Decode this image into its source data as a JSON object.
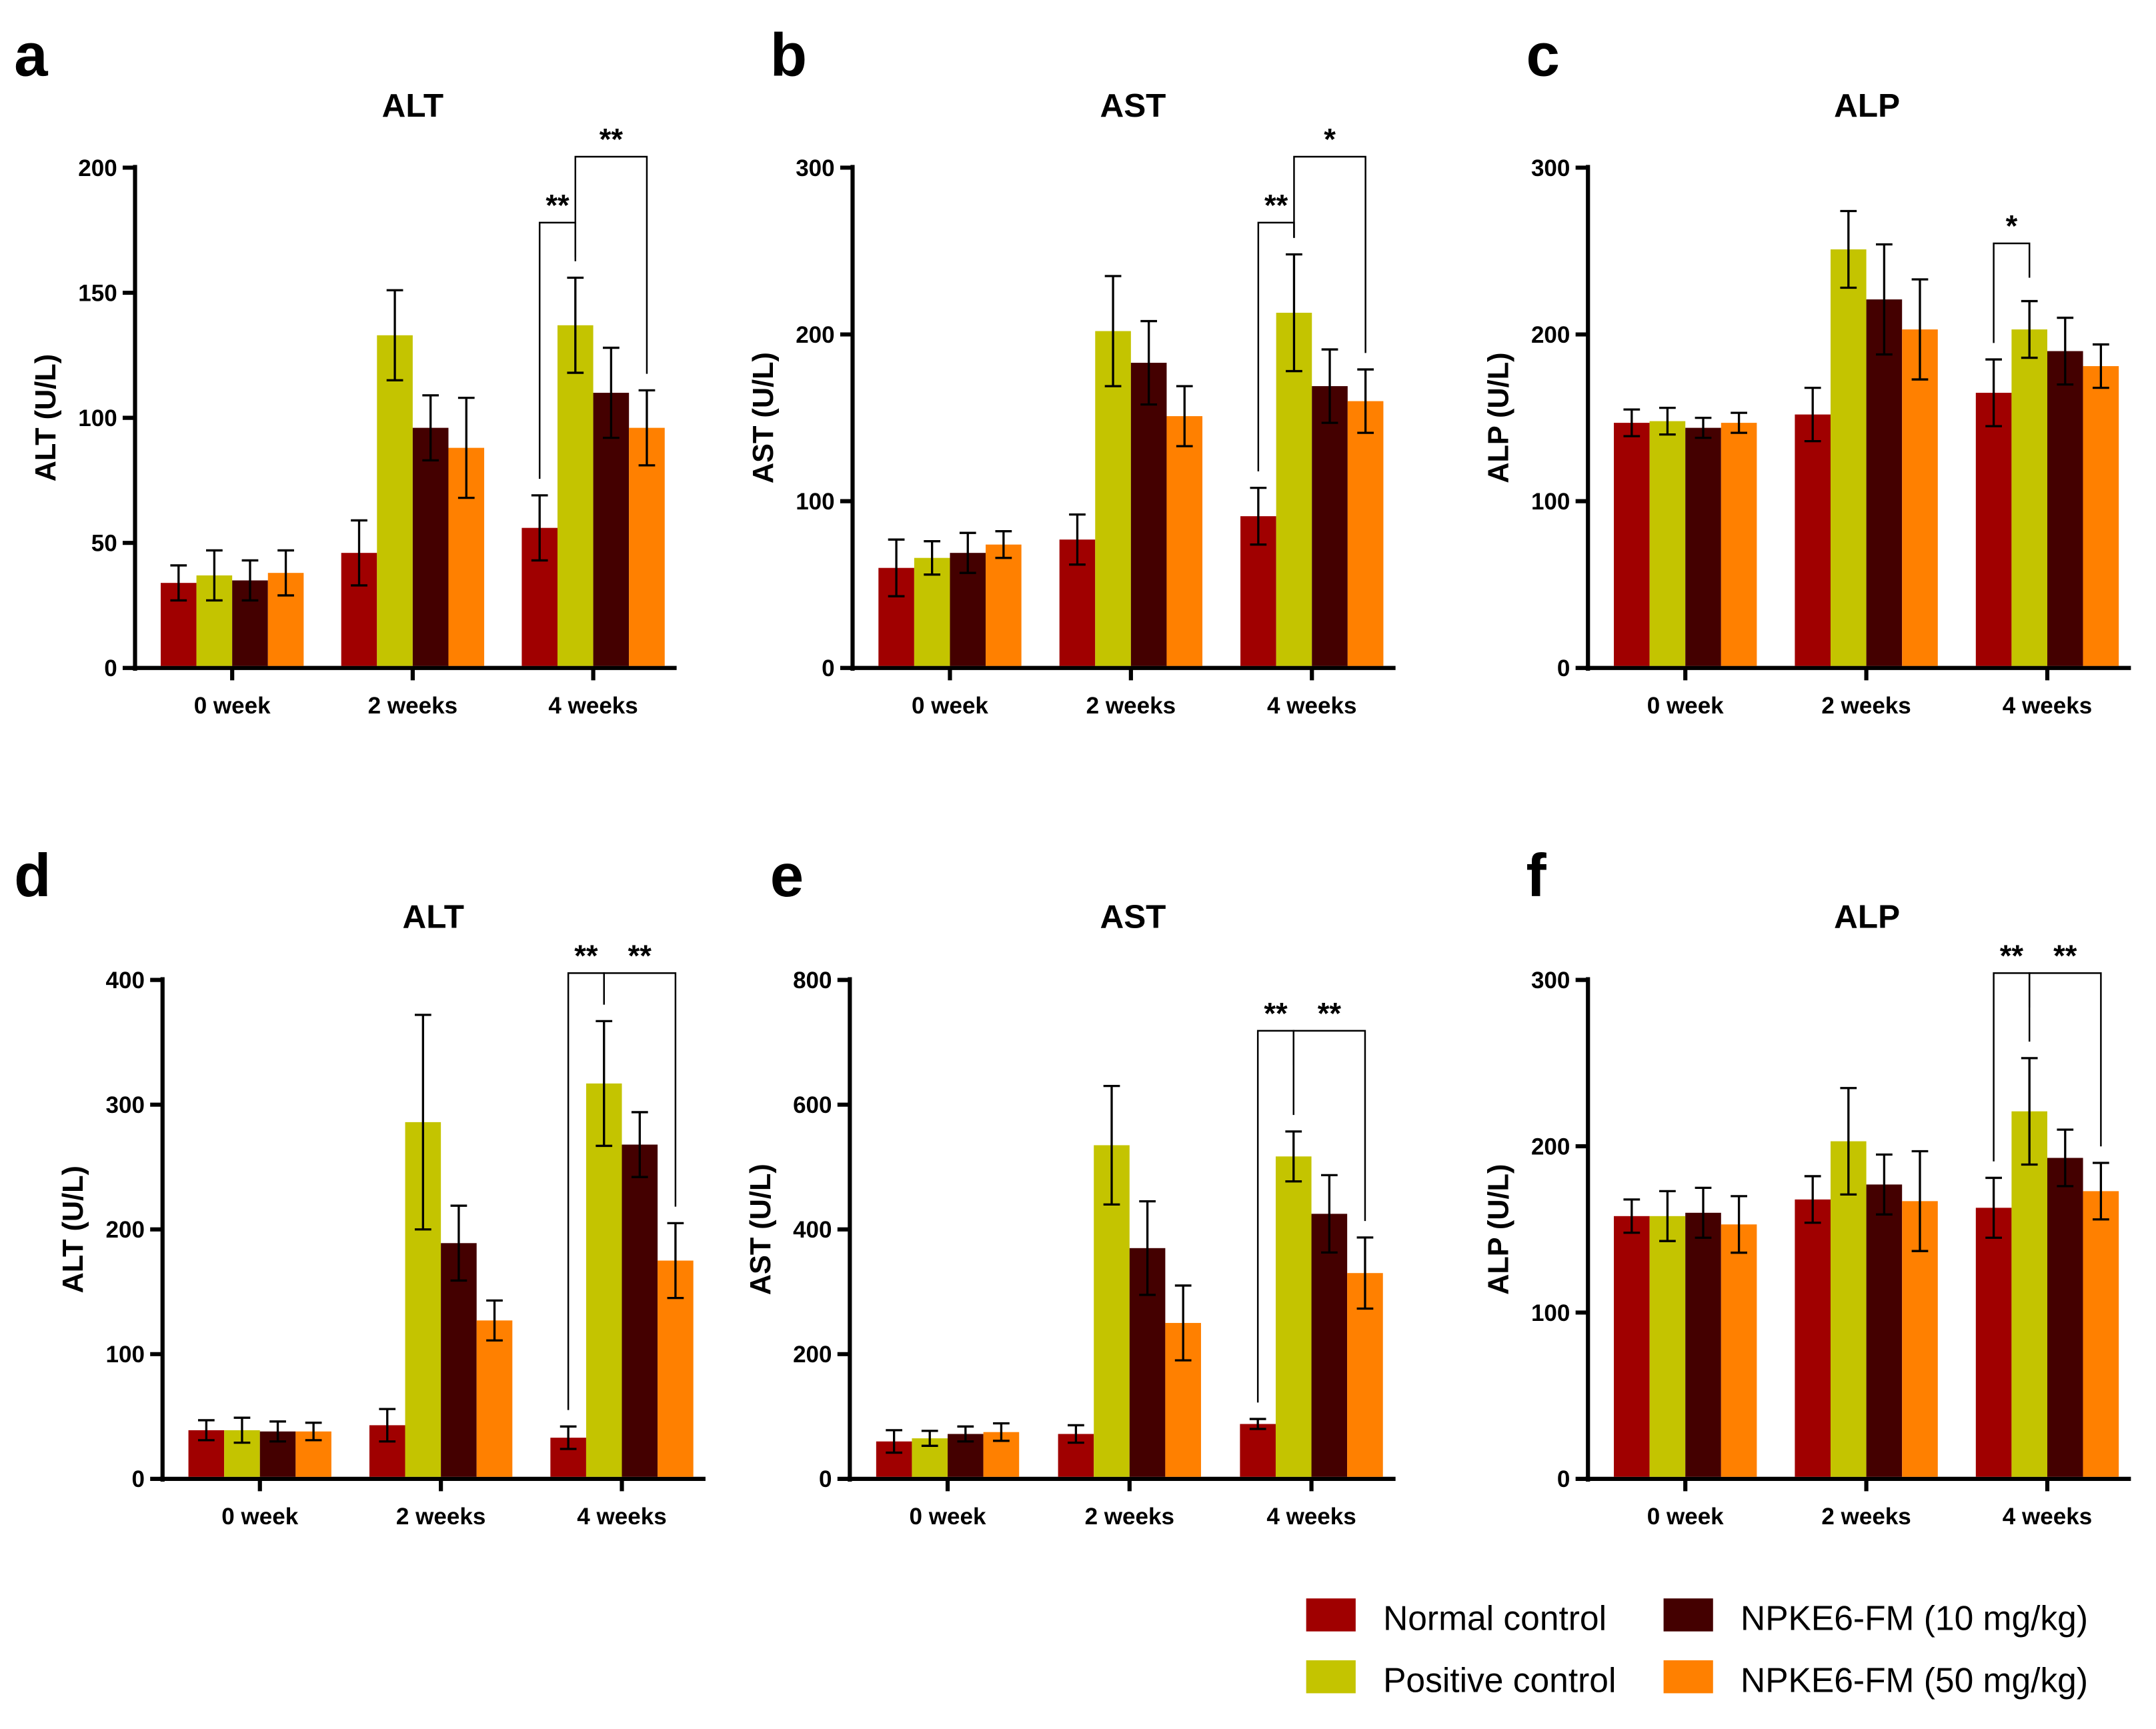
{
  "chart_data": [
    {
      "type": "bar",
      "panel": "a",
      "title": "ALT",
      "ylabel": "ALT (U/L)",
      "ylim": [
        0,
        200
      ],
      "yticks": [
        0,
        50,
        100,
        150,
        200
      ],
      "categories": [
        "0 week",
        "2 weeks",
        "4 weeks"
      ],
      "series": [
        {
          "name": "Normal control",
          "values": [
            34,
            46,
            56
          ],
          "errors": [
            7,
            13,
            13
          ]
        },
        {
          "name": "Positive control",
          "values": [
            37,
            133,
            137
          ],
          "errors": [
            10,
            18,
            19
          ]
        },
        {
          "name": "NPKE6-FM (10 mg/kg)",
          "values": [
            35,
            96,
            110
          ],
          "errors": [
            8,
            13,
            18
          ]
        },
        {
          "name": "NPKE6-FM (50 mg/kg)",
          "values": [
            38,
            88,
            96
          ],
          "errors": [
            9,
            20,
            15
          ]
        }
      ],
      "significance": [
        {
          "category": 2,
          "from": 0,
          "to": 1,
          "label": "**"
        },
        {
          "category": 2,
          "from": 1,
          "to": 3,
          "label": "**"
        }
      ]
    },
    {
      "type": "bar",
      "panel": "b",
      "title": "AST",
      "ylabel": "AST (U/L)",
      "ylim": [
        0,
        300
      ],
      "yticks": [
        0,
        100,
        200,
        300
      ],
      "categories": [
        "0 week",
        "2 weeks",
        "4 weeks"
      ],
      "series": [
        {
          "name": "Normal control",
          "values": [
            60,
            77,
            91
          ],
          "errors": [
            17,
            15,
            17
          ]
        },
        {
          "name": "Positive control",
          "values": [
            66,
            202,
            213
          ],
          "errors": [
            10,
            33,
            35
          ]
        },
        {
          "name": "NPKE6-FM (10 mg/kg)",
          "values": [
            69,
            183,
            169
          ],
          "errors": [
            12,
            25,
            22
          ]
        },
        {
          "name": "NPKE6-FM (50 mg/kg)",
          "values": [
            74,
            151,
            160
          ],
          "errors": [
            8,
            18,
            19
          ]
        }
      ],
      "significance": [
        {
          "category": 2,
          "from": 0,
          "to": 1,
          "label": "**"
        },
        {
          "category": 2,
          "from": 1,
          "to": 3,
          "label": "*"
        }
      ]
    },
    {
      "type": "bar",
      "panel": "c",
      "title": "ALP",
      "ylabel": "ALP (U/L)",
      "ylim": [
        0,
        300
      ],
      "yticks": [
        0,
        100,
        200,
        300
      ],
      "categories": [
        "0 week",
        "2 weeks",
        "4 weeks"
      ],
      "series": [
        {
          "name": "Normal control",
          "values": [
            147,
            152,
            165
          ],
          "errors": [
            8,
            16,
            20
          ]
        },
        {
          "name": "Positive control",
          "values": [
            148,
            251,
            203
          ],
          "errors": [
            8,
            23,
            17
          ]
        },
        {
          "name": "NPKE6-FM (10 mg/kg)",
          "values": [
            144,
            221,
            190
          ],
          "errors": [
            6,
            33,
            20
          ]
        },
        {
          "name": "NPKE6-FM (50 mg/kg)",
          "values": [
            147,
            203,
            181
          ],
          "errors": [
            6,
            30,
            13
          ]
        }
      ],
      "significance": [
        {
          "category": 2,
          "from": 0,
          "to": 1,
          "label": "*"
        }
      ]
    },
    {
      "type": "bar",
      "panel": "d",
      "title": "ALT",
      "ylabel": "ALT (U/L)",
      "ylim": [
        0,
        400
      ],
      "yticks": [
        0,
        100,
        200,
        300,
        400
      ],
      "categories": [
        "0 week",
        "2 weeks",
        "4 weeks"
      ],
      "series": [
        {
          "name": "Normal control",
          "values": [
            39,
            43,
            33
          ],
          "errors": [
            8,
            13,
            9
          ]
        },
        {
          "name": "Positive control",
          "values": [
            39,
            286,
            317
          ],
          "errors": [
            10,
            86,
            50
          ]
        },
        {
          "name": "NPKE6-FM (10 mg/kg)",
          "values": [
            38,
            189,
            268
          ],
          "errors": [
            8,
            30,
            26
          ]
        },
        {
          "name": "NPKE6-FM (50 mg/kg)",
          "values": [
            38,
            127,
            175
          ],
          "errors": [
            7,
            16,
            30
          ]
        }
      ],
      "significance": [
        {
          "category": 2,
          "from": 0,
          "to": 1,
          "label": "**"
        },
        {
          "category": 2,
          "from": 1,
          "to": 3,
          "label": "**"
        }
      ]
    },
    {
      "type": "bar",
      "panel": "e",
      "title": "AST",
      "ylabel": "AST (U/L)",
      "ylim": [
        0,
        800
      ],
      "yticks": [
        0,
        200,
        400,
        600,
        800
      ],
      "categories": [
        "0 week",
        "2 weeks",
        "4 weeks"
      ],
      "series": [
        {
          "name": "Normal control",
          "values": [
            60,
            72,
            88
          ],
          "errors": [
            18,
            14,
            8
          ]
        },
        {
          "name": "Positive control",
          "values": [
            65,
            535,
            517
          ],
          "errors": [
            12,
            95,
            40
          ]
        },
        {
          "name": "NPKE6-FM (10 mg/kg)",
          "values": [
            72,
            370,
            425
          ],
          "errors": [
            12,
            75,
            62
          ]
        },
        {
          "name": "NPKE6-FM (50 mg/kg)",
          "values": [
            75,
            250,
            330
          ],
          "errors": [
            14,
            60,
            57
          ]
        }
      ],
      "significance": [
        {
          "category": 2,
          "from": 0,
          "to": 1,
          "label": "**"
        },
        {
          "category": 2,
          "from": 1,
          "to": 3,
          "label": "**"
        }
      ]
    },
    {
      "type": "bar",
      "panel": "f",
      "title": "ALP",
      "ylabel": "ALP (U/L)",
      "ylim": [
        0,
        300
      ],
      "yticks": [
        0,
        100,
        200,
        300
      ],
      "categories": [
        "0 week",
        "2 weeks",
        "4 weeks"
      ],
      "series": [
        {
          "name": "Normal control",
          "values": [
            158,
            168,
            163
          ],
          "errors": [
            10,
            14,
            18
          ]
        },
        {
          "name": "Positive control",
          "values": [
            158,
            203,
            221
          ],
          "errors": [
            15,
            32,
            32
          ]
        },
        {
          "name": "NPKE6-FM (10 mg/kg)",
          "values": [
            160,
            177,
            193
          ],
          "errors": [
            15,
            18,
            17
          ]
        },
        {
          "name": "NPKE6-FM (50 mg/kg)",
          "values": [
            153,
            167,
            173
          ],
          "errors": [
            17,
            30,
            17
          ]
        }
      ],
      "significance": [
        {
          "category": 2,
          "from": 0,
          "to": 1,
          "label": "**"
        },
        {
          "category": 2,
          "from": 1,
          "to": 3,
          "label": "**"
        }
      ]
    }
  ],
  "colors": [
    "#a00000",
    "#c4c400",
    "#440000",
    "#ff8000"
  ],
  "legend": {
    "placement": "bottom-right",
    "entries": [
      "Normal control",
      "Positive control",
      "NPKE6-FM (10 mg/kg)",
      "NPKE6-FM (50 mg/kg)"
    ]
  }
}
